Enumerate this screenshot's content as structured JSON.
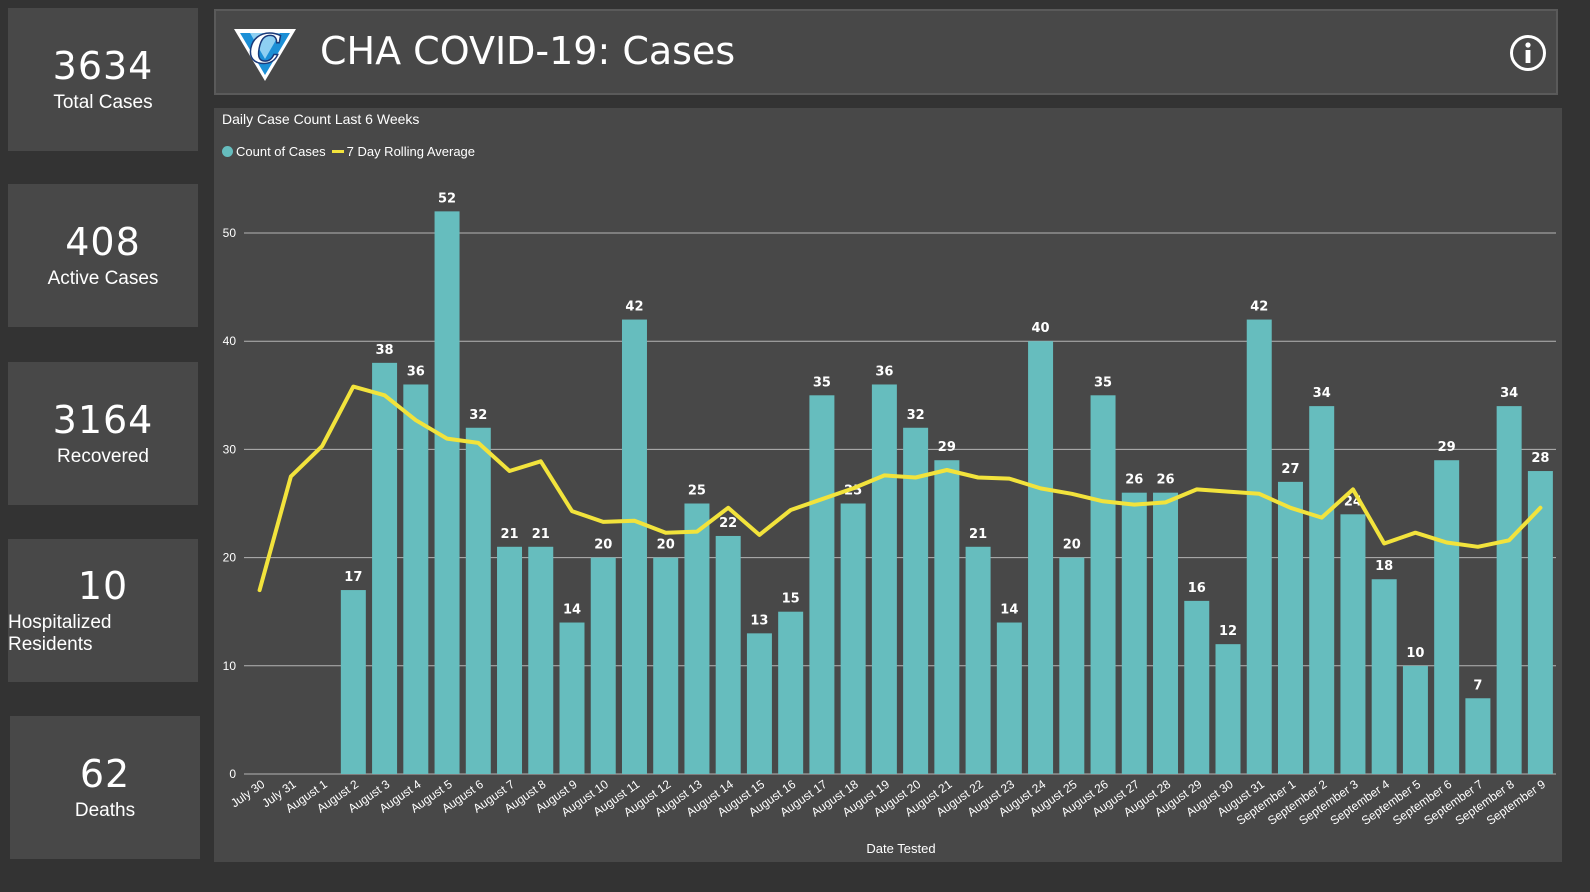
{
  "kpis": [
    {
      "value": "3634",
      "label": "Total Cases"
    },
    {
      "value": "408",
      "label": "Active Cases"
    },
    {
      "value": "3164",
      "label": "Recovered"
    },
    {
      "value": "10",
      "label": "Hospitalized Residents"
    },
    {
      "value": "62",
      "label": "Deaths"
    }
  ],
  "header": {
    "title": "CHA COVID-19: Cases",
    "logo_letter": "C",
    "info_icon": "info-icon"
  },
  "colors": {
    "background": "#333333",
    "panel": "#484848",
    "bar": "#66bdbe",
    "line": "#f2e33c"
  },
  "chart_data": {
    "type": "bar",
    "title": "Daily Case Count Last 6 Weeks",
    "xlabel": "Date Tested",
    "ylabel": "",
    "ylim": [
      0,
      52
    ],
    "yticks": [
      0,
      10,
      20,
      30,
      40,
      50
    ],
    "grid": true,
    "legend_position": "top-left",
    "categories": [
      "July 30",
      "July 31",
      "August 1",
      "August 2",
      "August 3",
      "August 4",
      "August 5",
      "August 6",
      "August 7",
      "August 8",
      "August 9",
      "August 10",
      "August 11",
      "August 12",
      "August 13",
      "August 14",
      "August 15",
      "August 16",
      "August 17",
      "August 18",
      "August 19",
      "August 20",
      "August 21",
      "August 22",
      "August 23",
      "August 24",
      "August 25",
      "August 26",
      "August 27",
      "August 28",
      "August 29",
      "August 30",
      "August 31",
      "September 1",
      "September 2",
      "September 3",
      "September 4",
      "September 5",
      "September 6",
      "September 7",
      "September 8",
      "September 9"
    ],
    "series": [
      {
        "name": "Count of Cases",
        "type": "bar",
        "values": [
          null,
          null,
          null,
          17,
          38,
          36,
          52,
          32,
          21,
          21,
          14,
          20,
          42,
          20,
          25,
          22,
          13,
          15,
          35,
          25,
          36,
          32,
          29,
          21,
          14,
          40,
          20,
          35,
          26,
          26,
          16,
          12,
          42,
          27,
          34,
          24,
          18,
          10,
          29,
          7,
          34,
          28
        ]
      },
      {
        "name": "7 Day Rolling Average",
        "type": "line",
        "values": [
          17,
          27.5,
          30.3,
          35.8,
          35.0,
          32.7,
          31.0,
          30.6,
          28.0,
          28.9,
          24.3,
          23.3,
          23.4,
          22.3,
          22.4,
          24.6,
          22.1,
          24.4,
          25.4,
          26.4,
          27.6,
          27.4,
          28.1,
          27.4,
          27.3,
          26.4,
          25.9,
          25.2,
          24.9,
          25.1,
          26.3,
          26.1,
          25.9,
          24.6,
          23.7,
          26.3,
          21.3,
          22.3,
          21.4,
          21.0,
          21.6,
          24.6
        ]
      }
    ]
  }
}
